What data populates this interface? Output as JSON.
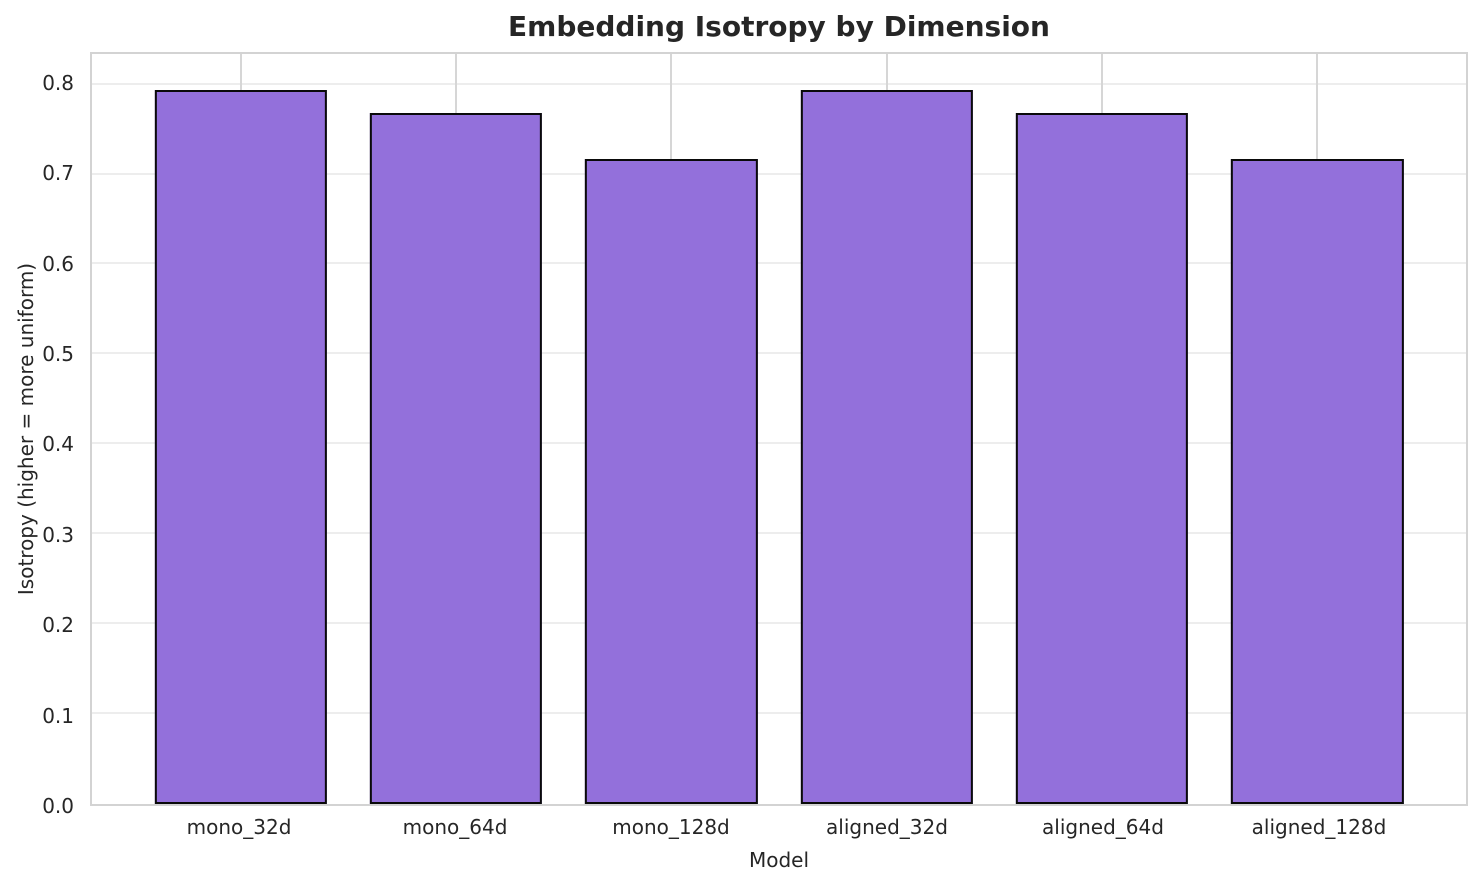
{
  "figure": {
    "background": "#ffffff"
  },
  "chart_data": {
    "type": "bar",
    "title": "Embedding Isotropy by Dimension",
    "xlabel": "Model",
    "ylabel": "Isotropy (higher = more uniform)",
    "categories": [
      "mono_32d",
      "mono_64d",
      "mono_128d",
      "aligned_32d",
      "aligned_64d",
      "aligned_128d"
    ],
    "values": [
      0.794,
      0.768,
      0.717,
      0.794,
      0.768,
      0.717
    ],
    "ylim": [
      0,
      0.834
    ],
    "xlim": [
      -0.69,
      5.69
    ],
    "bar_width": 0.8,
    "yticks": [
      "0.0",
      "0.1",
      "0.2",
      "0.3",
      "0.4",
      "0.5",
      "0.6",
      "0.7",
      "0.8"
    ],
    "ytick_values": [
      0.0,
      0.1,
      0.2,
      0.3,
      0.4,
      0.5,
      0.6,
      0.7,
      0.8
    ],
    "grid": true,
    "legend_position": "none",
    "bar_color": "#9370DB",
    "bar_edge_color": "#0a0a0a",
    "grid_color_horizontal": "#ededed",
    "grid_color_vertical": "#d6d6d6",
    "frame_color": "#d3d3d3",
    "text_color": "#262626"
  }
}
